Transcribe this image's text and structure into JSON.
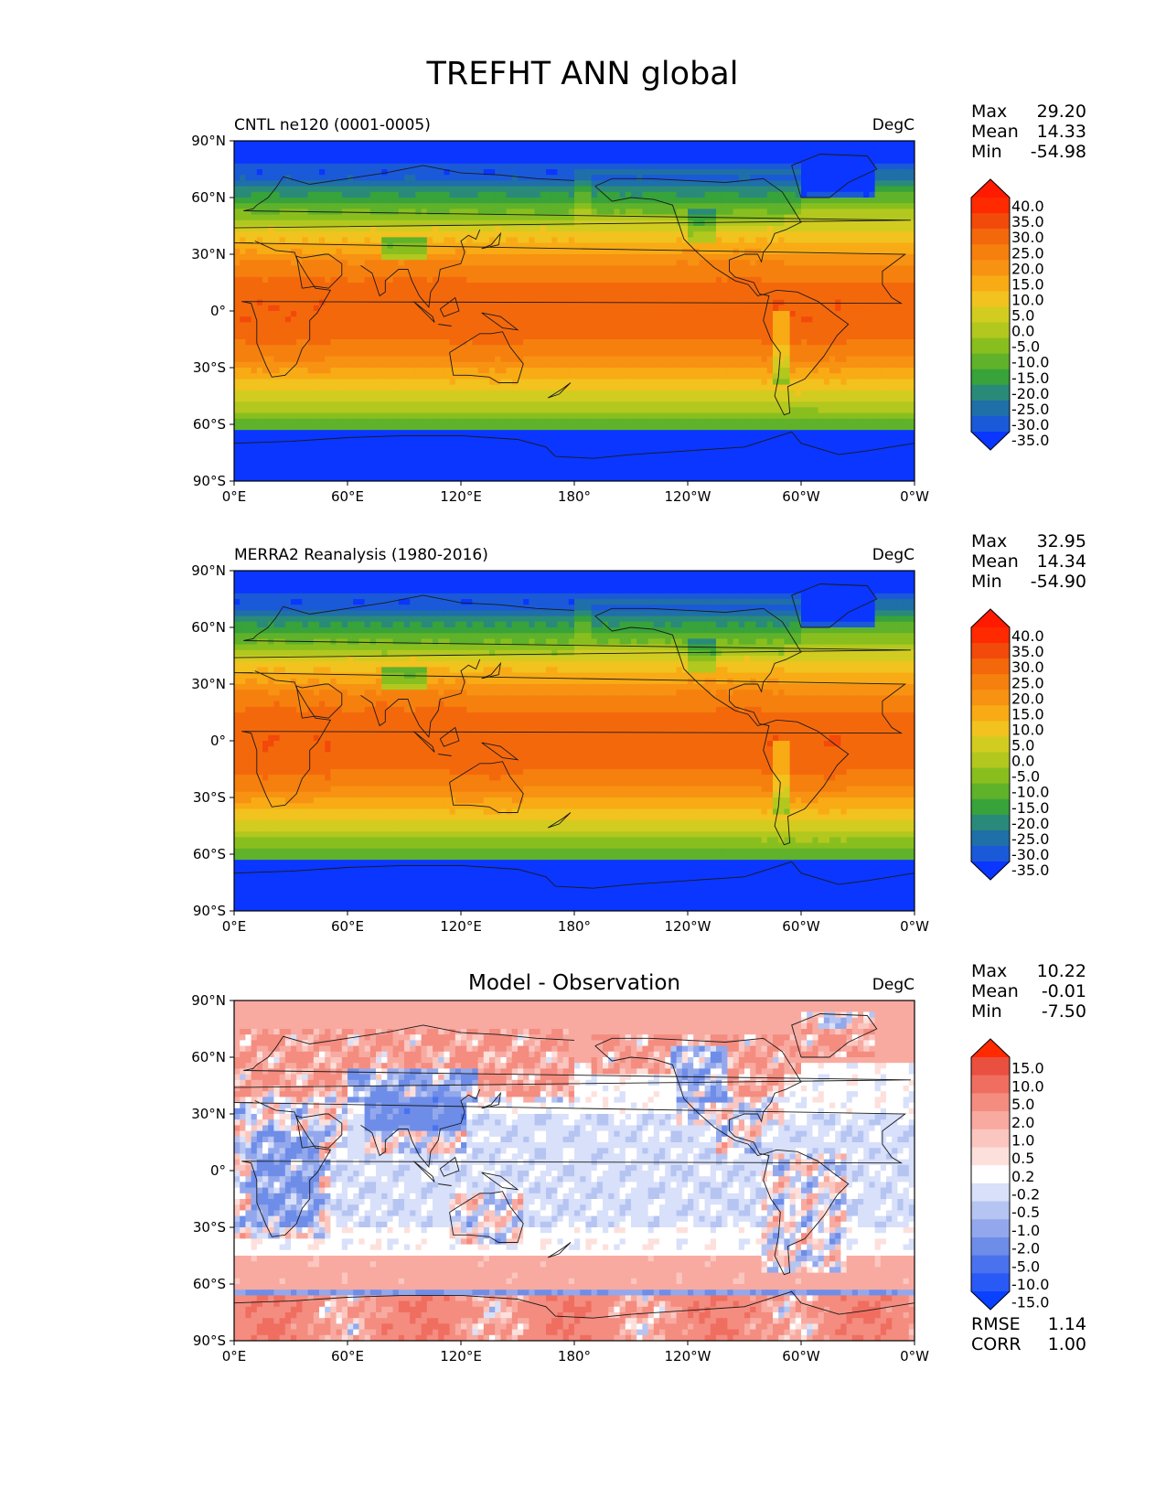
{
  "figure_title": "TREFHT ANN global",
  "colors": {
    "land_outline": "#1a1a1a",
    "frame": "#000000"
  },
  "chart_data": [
    {
      "type": "heatmap",
      "id": "test",
      "left_title": "CNTL ne120 (0001-0005)",
      "center_title": "",
      "units": "DegC",
      "stats": {
        "Max": "29.20",
        "Mean": "14.33",
        "Min": "-54.98"
      },
      "field": "test",
      "xticks": [
        "0°E",
        "60°E",
        "120°E",
        "180°",
        "120°W",
        "60°W",
        "0°W"
      ],
      "yticks": [
        "90°N",
        "60°N",
        "30°N",
        "0°",
        "30°S",
        "60°S",
        "90°S"
      ],
      "xlim": [
        0,
        360
      ],
      "ylim": [
        -90,
        90
      ],
      "colorbar": {
        "labels": [
          "40.0",
          "35.0",
          "30.0",
          "25.0",
          "20.0",
          "15.0",
          "10.0",
          "5.0",
          "0.0",
          "-5.0",
          "-10.0",
          "-15.0",
          "-20.0",
          "-25.0",
          "-30.0",
          "-35.0"
        ],
        "levels": [
          -35,
          -30,
          -25,
          -20,
          -15,
          -10,
          -5,
          0,
          5,
          10,
          15,
          20,
          25,
          30,
          35,
          40
        ],
        "colors": [
          "#0a36ff",
          "#1a5ad8",
          "#1f6fa8",
          "#2a8a7a",
          "#37a33a",
          "#5fb22a",
          "#88bf1e",
          "#b2c81e",
          "#d2cc20",
          "#f2c21e",
          "#f8ab14",
          "#f89212",
          "#f6800e",
          "#f4680c",
          "#f24a0a",
          "#ff2a00",
          "#ff1a00"
        ],
        "extend": "both"
      }
    },
    {
      "type": "heatmap",
      "id": "ref",
      "left_title": "MERRA2 Reanalysis (1980-2016)",
      "center_title": "",
      "units": "DegC",
      "stats": {
        "Max": "32.95",
        "Mean": "14.34",
        "Min": "-54.90"
      },
      "field": "ref",
      "xticks": [
        "0°E",
        "60°E",
        "120°E",
        "180°",
        "120°W",
        "60°W",
        "0°W"
      ],
      "yticks": [
        "90°N",
        "60°N",
        "30°N",
        "0°",
        "30°S",
        "60°S",
        "90°S"
      ],
      "xlim": [
        0,
        360
      ],
      "ylim": [
        -90,
        90
      ],
      "colorbar": {
        "labels": [
          "40.0",
          "35.0",
          "30.0",
          "25.0",
          "20.0",
          "15.0",
          "10.0",
          "5.0",
          "0.0",
          "-5.0",
          "-10.0",
          "-15.0",
          "-20.0",
          "-25.0",
          "-30.0",
          "-35.0"
        ],
        "levels": [
          -35,
          -30,
          -25,
          -20,
          -15,
          -10,
          -5,
          0,
          5,
          10,
          15,
          20,
          25,
          30,
          35,
          40
        ],
        "colors": [
          "#0a36ff",
          "#1a5ad8",
          "#1f6fa8",
          "#2a8a7a",
          "#37a33a",
          "#5fb22a",
          "#88bf1e",
          "#b2c81e",
          "#d2cc20",
          "#f2c21e",
          "#f8ab14",
          "#f89212",
          "#f6800e",
          "#f4680c",
          "#f24a0a",
          "#ff2a00",
          "#ff1a00"
        ],
        "extend": "both"
      }
    },
    {
      "type": "heatmap",
      "id": "diff",
      "left_title": "",
      "center_title": "Model - Observation",
      "units": "DegC",
      "stats": {
        "Max": "10.22",
        "Mean": "-0.01",
        "Min": "-7.50"
      },
      "extra_stats": {
        "RMSE": "1.14",
        "CORR": "1.00"
      },
      "field": "diff",
      "xticks": [
        "0°E",
        "60°E",
        "120°E",
        "180°",
        "120°W",
        "60°W",
        "0°W"
      ],
      "yticks": [
        "90°N",
        "60°N",
        "30°N",
        "0°",
        "30°S",
        "60°S",
        "90°S"
      ],
      "xlim": [
        0,
        360
      ],
      "ylim": [
        -90,
        90
      ],
      "colorbar": {
        "labels": [
          "15.0",
          "10.0",
          "5.0",
          "2.0",
          "1.0",
          "0.5",
          "0.2",
          "-0.2",
          "-0.5",
          "-1.0",
          "-2.0",
          "-5.0",
          "-10.0",
          "-15.0"
        ],
        "levels": [
          -15,
          -10,
          -5,
          -2,
          -1,
          -0.5,
          -0.2,
          0.2,
          0.5,
          1,
          2,
          5,
          10,
          15
        ],
        "colors": [
          "#0a40ff",
          "#2a5af5",
          "#4a72ee",
          "#6e8de8",
          "#93a8ec",
          "#b6c4f2",
          "#d8e0fa",
          "#ffffff",
          "#fde0dc",
          "#fbc6bf",
          "#f8aaa0",
          "#f48c80",
          "#ef6e60",
          "#ea5040",
          "#ff2a00"
        ],
        "extend": "both"
      }
    }
  ]
}
